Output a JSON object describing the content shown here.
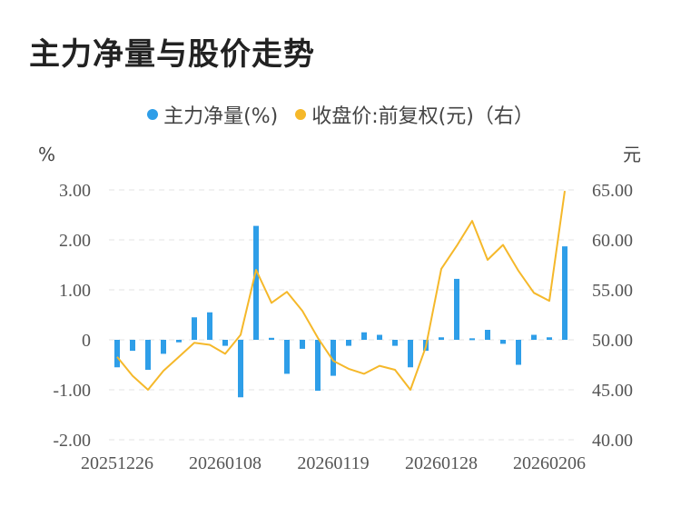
{
  "title": "主力净量与股价走势",
  "colors": {
    "bar": "#2E9EE8",
    "line": "#F5B82A",
    "grid": "#E3E3E3"
  },
  "chart_data": {
    "type": "bar+line",
    "title": "主力净量与股价走势",
    "legend": [
      {
        "name": "主力净量(%)",
        "color": "#2E9EE8"
      },
      {
        "name": "收盘价:前复权(元)（右）",
        "color": "#F5B82A"
      }
    ],
    "y_left": {
      "unit": "%",
      "ticks": [
        "3.00",
        "2.00",
        "1.00",
        "0",
        "-1.00",
        "-2.00"
      ],
      "ylim": [
        -2,
        3
      ]
    },
    "y_right": {
      "unit": "元",
      "ticks": [
        "65.00",
        "60.00",
        "55.00",
        "50.00",
        "45.00",
        "40.00"
      ],
      "ylim": [
        40,
        65
      ]
    },
    "x_ticks": [
      "20251226",
      "20260108",
      "20260119",
      "20260128",
      "20260206"
    ],
    "x_tick_index": [
      0,
      7,
      14,
      21,
      28
    ],
    "legend_position": "top",
    "grid": true,
    "series": [
      {
        "name": "主力净量(%)",
        "type": "bar",
        "axis": "left",
        "values": [
          -0.55,
          -0.22,
          -0.6,
          -0.28,
          -0.05,
          0.45,
          0.55,
          -0.12,
          -1.15,
          2.28,
          0.04,
          -0.68,
          -0.18,
          -1.02,
          -0.72,
          -0.12,
          0.15,
          0.1,
          -0.12,
          -0.55,
          -0.22,
          0.05,
          1.22,
          0.03,
          0.2,
          -0.08,
          -0.5,
          0.1,
          0.05,
          1.87
        ]
      },
      {
        "name": "收盘价:前复权(元)（右）",
        "type": "line",
        "axis": "right",
        "values": [
          48.3,
          46.4,
          45.0,
          46.9,
          48.3,
          49.7,
          49.5,
          48.6,
          50.5,
          57.0,
          53.7,
          54.8,
          52.9,
          50.2,
          47.9,
          47.1,
          46.6,
          47.4,
          47.0,
          45.0,
          49.3,
          57.1,
          59.4,
          61.9,
          58.0,
          59.5,
          56.9,
          54.7,
          53.9,
          64.9
        ]
      }
    ]
  }
}
